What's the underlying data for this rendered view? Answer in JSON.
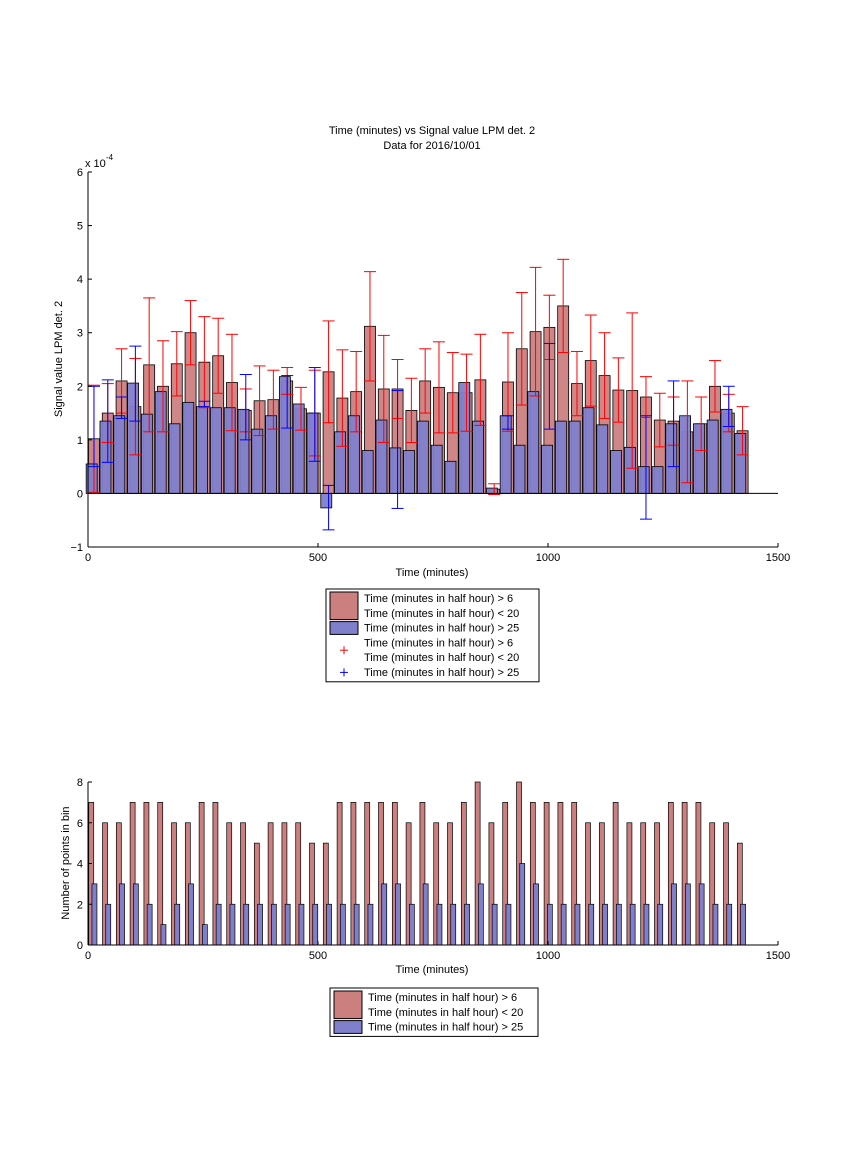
{
  "chart_data": [
    {
      "type": "bar",
      "title": "Time (minutes) vs Signal value LPM det. 2",
      "subtitle": "Data for 2016/10/01",
      "xlabel": "Time (minutes)",
      "ylabel": "Signal value LPM det. 2",
      "y_exponent_label": "x 10",
      "y_exponent": "-4",
      "xlim": [
        0,
        1500
      ],
      "ylim": [
        -1,
        6
      ],
      "x_ticks": [
        0,
        500,
        1000,
        1500
      ],
      "y_ticks": [
        -1,
        0,
        1,
        2,
        3,
        4,
        5,
        6
      ],
      "legend_position": "below",
      "legend": [
        {
          "label": "Time (minutes in half hour) > 6\nTime (minutes in half hour) < 20",
          "kind": "bar",
          "color": "#cc7f7f"
        },
        {
          "label": "Time (minutes in half hour) > 25",
          "kind": "bar",
          "color": "#7f7fcc"
        },
        {
          "label": "Time (minutes in half hour) > 6\nTime (minutes in half hour) < 20",
          "kind": "marker",
          "color": "#ff0000"
        },
        {
          "label": "Time (minutes in half hour) > 25",
          "kind": "marker",
          "color": "#0000ff"
        }
      ],
      "series": [
        {
          "name": "Time (minutes in half hour) > 6\nTime (minutes in half hour) < 20",
          "color": "#cc7f7f",
          "error_color": "#ff0000",
          "x": [
            13,
            43,
            73,
            103,
            133,
            163,
            193,
            223,
            253,
            283,
            313,
            343,
            373,
            403,
            433,
            463,
            493,
            523,
            553,
            583,
            613,
            643,
            673,
            703,
            733,
            763,
            793,
            823,
            853,
            883,
            913,
            943,
            973,
            1003,
            1033,
            1063,
            1093,
            1123,
            1153,
            1183,
            1213,
            1243,
            1273,
            1303,
            1333,
            1363,
            1393,
            1423
          ],
          "values": [
            1.02,
            1.5,
            2.1,
            1.62,
            2.4,
            2.0,
            2.42,
            3.0,
            2.45,
            2.57,
            2.07,
            1.55,
            1.73,
            1.75,
            2.1,
            1.58,
            1.5,
            2.27,
            1.78,
            1.9,
            3.12,
            1.95,
            1.95,
            1.55,
            2.1,
            1.98,
            1.88,
            1.88,
            2.12,
            0.08,
            2.08,
            2.7,
            3.02,
            3.1,
            3.5,
            2.05,
            2.48,
            2.2,
            1.93,
            1.92,
            1.8,
            1.37,
            1.35,
            1.15,
            1.3,
            2.0,
            1.5,
            1.17
          ],
          "err": [
            1.0,
            0.55,
            0.6,
            0.9,
            1.25,
            0.85,
            0.6,
            0.6,
            0.85,
            0.7,
            0.9,
            0.4,
            0.65,
            0.55,
            0.25,
            0.4,
            0.8,
            0.95,
            0.9,
            0.75,
            1.02,
            1.0,
            0.55,
            0.6,
            0.6,
            0.85,
            0.75,
            0.72,
            0.85,
            0.1,
            0.92,
            1.05,
            1.2,
            0.6,
            0.87,
            0.6,
            0.85,
            0.8,
            0.6,
            1.45,
            0.38,
            0.5,
            0.45,
            0.95,
            0.5,
            0.48,
            0.35,
            0.45
          ]
        },
        {
          "name": "Time (minutes in half hour) > 25",
          "color": "#7f7fcc",
          "error_color": "#0000ff",
          "x": [
            8,
            38,
            68,
            98,
            128,
            158,
            188,
            218,
            248,
            278,
            308,
            338,
            368,
            398,
            428,
            458,
            488,
            518,
            548,
            578,
            608,
            638,
            668,
            698,
            728,
            758,
            788,
            818,
            848,
            878,
            908,
            938,
            968,
            998,
            1028,
            1058,
            1088,
            1118,
            1148,
            1178,
            1208,
            1238,
            1268,
            1298,
            1328,
            1358,
            1388,
            1418
          ],
          "values": [
            0.55,
            1.35,
            1.45,
            2.06,
            1.48,
            1.9,
            1.3,
            1.7,
            1.62,
            1.6,
            1.6,
            1.57,
            1.2,
            1.45,
            2.18,
            1.67,
            1.5,
            -0.27,
            1.15,
            1.45,
            0.8,
            1.37,
            0.85,
            0.8,
            1.35,
            0.9,
            0.6,
            2.07,
            1.35,
            0.1,
            1.45,
            0.9,
            1.9,
            0.9,
            1.35,
            1.35,
            1.6,
            1.28,
            0.8,
            0.86,
            0.5,
            0.5,
            1.3,
            1.45,
            1.3,
            1.37,
            1.57,
            1.12
          ]
        }
      ],
      "blue_error_points": [
        {
          "x": 13,
          "lo": 0.5,
          "hi": 2.0
        },
        {
          "x": 43,
          "lo": 0.58,
          "hi": 2.12
        },
        {
          "x": 73,
          "lo": 1.4,
          "hi": 1.8
        },
        {
          "x": 103,
          "lo": 1.35,
          "hi": 2.75
        },
        {
          "x": 253,
          "lo": 1.62,
          "hi": 1.72
        },
        {
          "x": 343,
          "lo": 1.0,
          "hi": 2.22
        },
        {
          "x": 433,
          "lo": 1.22,
          "hi": 2.2
        },
        {
          "x": 493,
          "lo": 0.6,
          "hi": 2.35
        },
        {
          "x": 523,
          "lo": -0.68,
          "hi": 0.15
        },
        {
          "x": 673,
          "lo": -0.28,
          "hi": 1.92
        },
        {
          "x": 913,
          "lo": 1.2,
          "hi": 1.45
        },
        {
          "x": 1003,
          "lo": 1.2,
          "hi": 2.8
        },
        {
          "x": 1213,
          "lo": -0.48,
          "hi": 1.45
        },
        {
          "x": 1273,
          "lo": 0.5,
          "hi": 2.1
        },
        {
          "x": 1393,
          "lo": 1.25,
          "hi": 2.0
        }
      ]
    },
    {
      "type": "bar",
      "xlabel": "Time (minutes)",
      "ylabel": "Number of points in bin",
      "xlim": [
        0,
        1500
      ],
      "ylim": [
        0,
        8
      ],
      "x_ticks": [
        0,
        500,
        1000,
        1500
      ],
      "y_ticks": [
        0,
        2,
        4,
        6,
        8
      ],
      "legend_position": "below",
      "legend": [
        {
          "label": "Time (minutes in half hour) > 6\nTime (minutes in half hour) < 20",
          "kind": "bar",
          "color": "#cc7f7f"
        },
        {
          "label": "Time (minutes in half hour) > 25",
          "kind": "bar",
          "color": "#7f7fcc"
        }
      ],
      "series": [
        {
          "name": "Time (minutes in half hour) > 6\nTime (minutes in half hour) < 20",
          "color": "#cc7f7f",
          "x": [
            7,
            37,
            67,
            97,
            127,
            157,
            187,
            217,
            247,
            277,
            307,
            337,
            367,
            397,
            427,
            457,
            487,
            517,
            547,
            577,
            607,
            637,
            667,
            697,
            727,
            757,
            787,
            817,
            847,
            877,
            907,
            937,
            967,
            997,
            1027,
            1057,
            1087,
            1117,
            1147,
            1177,
            1207,
            1237,
            1267,
            1297,
            1327,
            1357,
            1387,
            1417
          ],
          "values": [
            7,
            6,
            6,
            7,
            7,
            7,
            6,
            6,
            7,
            7,
            6,
            6,
            5,
            6,
            6,
            6,
            5,
            5,
            7,
            7,
            7,
            7,
            7,
            6,
            7,
            6,
            6,
            7,
            8,
            6,
            7,
            8,
            7,
            7,
            7,
            7,
            6,
            6,
            7,
            6,
            6,
            6,
            7,
            7,
            7,
            6,
            6,
            5
          ]
        },
        {
          "name": "Time (minutes in half hour) > 25",
          "color": "#7f7fcc",
          "x": [
            14,
            44,
            74,
            104,
            134,
            164,
            194,
            224,
            254,
            284,
            314,
            344,
            374,
            404,
            434,
            464,
            494,
            524,
            554,
            584,
            614,
            644,
            674,
            704,
            734,
            764,
            794,
            824,
            854,
            884,
            914,
            944,
            974,
            1004,
            1034,
            1064,
            1094,
            1124,
            1154,
            1184,
            1214,
            1244,
            1274,
            1304,
            1334,
            1364,
            1394,
            1424
          ],
          "values": [
            3,
            2,
            3,
            3,
            2,
            1,
            2,
            3,
            1,
            2,
            2,
            2,
            2,
            2,
            2,
            2,
            2,
            2,
            2,
            2,
            2,
            3,
            3,
            2,
            3,
            2,
            2,
            2,
            3,
            2,
            2,
            4,
            3,
            2,
            2,
            2,
            2,
            2,
            2,
            2,
            2,
            2,
            3,
            3,
            3,
            2,
            2,
            2
          ]
        }
      ]
    }
  ]
}
